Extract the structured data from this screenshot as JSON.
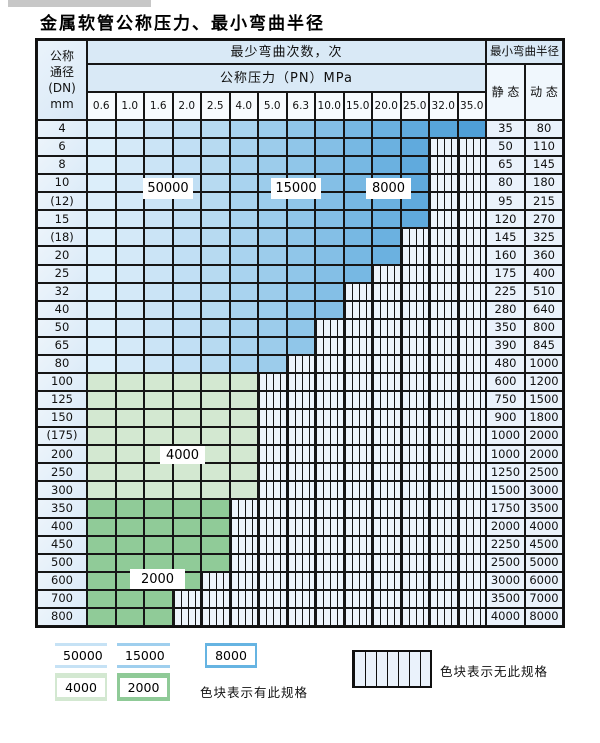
{
  "title": "金属软管公称压力、最小弯曲半径",
  "table": {
    "dn_header_lines": [
      "公称",
      "通径",
      "(DN)",
      "mm"
    ],
    "bend_cycles_header": "最少弯曲次数，次",
    "pressure_header": "公称压力（PN）MPa",
    "radius_header": "最小弯曲半径",
    "static_label": "静 态",
    "dynamic_label": "动 态",
    "pressure_columns": [
      "0.6",
      "1.0",
      "1.6",
      "2.0",
      "2.5",
      "4.0",
      "5.0",
      "6.3",
      "10.0",
      "15.0",
      "20.0",
      "25.0",
      "32.0",
      "35.0"
    ],
    "rows": [
      {
        "dn": "4",
        "colored_cols": 14,
        "band": "blue",
        "static": "35",
        "dynamic": "80"
      },
      {
        "dn": "6",
        "colored_cols": 12,
        "band": "blue",
        "static": "50",
        "dynamic": "110"
      },
      {
        "dn": "8",
        "colored_cols": 12,
        "band": "blue",
        "static": "65",
        "dynamic": "145"
      },
      {
        "dn": "10",
        "colored_cols": 12,
        "band": "blue",
        "static": "80",
        "dynamic": "180"
      },
      {
        "dn": "(12)",
        "colored_cols": 12,
        "band": "blue",
        "static": "95",
        "dynamic": "215"
      },
      {
        "dn": "15",
        "colored_cols": 12,
        "band": "blue",
        "static": "120",
        "dynamic": "270"
      },
      {
        "dn": "(18)",
        "colored_cols": 11,
        "band": "blue",
        "static": "145",
        "dynamic": "325"
      },
      {
        "dn": "20",
        "colored_cols": 11,
        "band": "blue",
        "static": "160",
        "dynamic": "360"
      },
      {
        "dn": "25",
        "colored_cols": 10,
        "band": "blue",
        "static": "175",
        "dynamic": "400"
      },
      {
        "dn": "32",
        "colored_cols": 9,
        "band": "blue",
        "static": "225",
        "dynamic": "510"
      },
      {
        "dn": "40",
        "colored_cols": 9,
        "band": "blue",
        "static": "280",
        "dynamic": "640"
      },
      {
        "dn": "50",
        "colored_cols": 8,
        "band": "blue",
        "static": "350",
        "dynamic": "800"
      },
      {
        "dn": "65",
        "colored_cols": 8,
        "band": "blue",
        "static": "390",
        "dynamic": "845"
      },
      {
        "dn": "80",
        "colored_cols": 7,
        "band": "blue",
        "static": "480",
        "dynamic": "1000"
      },
      {
        "dn": "100",
        "colored_cols": 6,
        "band": "green_4000",
        "static": "600",
        "dynamic": "1200"
      },
      {
        "dn": "125",
        "colored_cols": 6,
        "band": "green_4000",
        "static": "750",
        "dynamic": "1500"
      },
      {
        "dn": "150",
        "colored_cols": 6,
        "band": "green_4000",
        "static": "900",
        "dynamic": "1800"
      },
      {
        "dn": "(175)",
        "colored_cols": 6,
        "band": "green_4000",
        "static": "1000",
        "dynamic": "2000"
      },
      {
        "dn": "200",
        "colored_cols": 6,
        "band": "green_4000",
        "static": "1000",
        "dynamic": "2000"
      },
      {
        "dn": "250",
        "colored_cols": 6,
        "band": "green_4000",
        "static": "1250",
        "dynamic": "2500"
      },
      {
        "dn": "300",
        "colored_cols": 6,
        "band": "green_4000",
        "static": "1500",
        "dynamic": "3000"
      },
      {
        "dn": "350",
        "colored_cols": 5,
        "band": "green_2000",
        "static": "1750",
        "dynamic": "3500"
      },
      {
        "dn": "400",
        "colored_cols": 5,
        "band": "green_2000",
        "static": "2000",
        "dynamic": "4000"
      },
      {
        "dn": "450",
        "colored_cols": 5,
        "band": "green_2000",
        "static": "2250",
        "dynamic": "4500"
      },
      {
        "dn": "500",
        "colored_cols": 5,
        "band": "green_2000",
        "static": "2500",
        "dynamic": "5000"
      },
      {
        "dn": "600",
        "colored_cols": 4,
        "band": "green_2000",
        "static": "3000",
        "dynamic": "6000"
      },
      {
        "dn": "700",
        "colored_cols": 3,
        "band": "green_2000",
        "static": "3500",
        "dynamic": "7000"
      },
      {
        "dn": "800",
        "colored_cols": 3,
        "band": "green_2000",
        "static": "4000",
        "dynamic": "8000"
      }
    ]
  },
  "cycle_labels": {
    "c50000": "50000",
    "c15000": "15000",
    "c8000": "8000",
    "c4000": "4000",
    "c2000": "2000"
  },
  "colors": {
    "blue_columns": [
      "#dceefa",
      "#d4e9f8",
      "#cbe4f6",
      "#c1dff4",
      "#b7daf1",
      "#a9d3ef",
      "#9ccceb",
      "#90c6e9",
      "#84bfe6",
      "#77b8e3",
      "#6bb1e0",
      "#60aadd",
      "#57a5da",
      "#4f9fd7"
    ],
    "green_4000": "#d3e8d1",
    "green_2000": "#90cb98",
    "legend_50000": "#c6e2f5",
    "legend_15000": "#9fcfee",
    "legend_8000": "#66b4e2",
    "legend_4000": "#d3e8d1",
    "legend_2000": "#8fca97",
    "hatch_background": "#edf4fb"
  },
  "legend": {
    "has_spec_text": "色块表示有此规格",
    "no_spec_text": "色块表示无此规格"
  }
}
